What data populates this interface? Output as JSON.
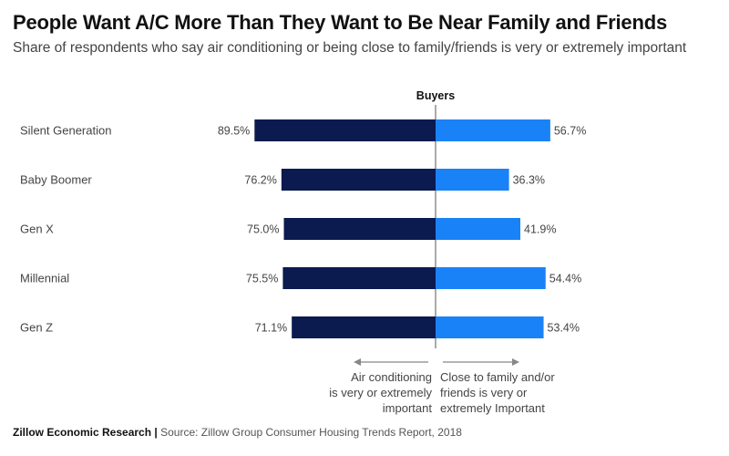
{
  "title": "People Want A/C More Than They Want to Be Near Family and Friends",
  "subtitle": "Share of respondents who say air conditioning or being close to family/friends is very or extremely important",
  "footer": {
    "brand": "Zillow Economic Research |",
    "source": "Source: Zillow Group Consumer Housing Trends Report, 2018"
  },
  "colors": {
    "left_series": "#0b1a4f",
    "right_series": "#1a82f7",
    "axis": "#888888"
  },
  "chart_data": {
    "type": "bar",
    "orientation": "horizontal-diverging",
    "center_label": "Buyers",
    "categories": [
      "Silent Generation",
      "Baby Boomer",
      "Gen X",
      "Millennial",
      "Gen Z"
    ],
    "series": [
      {
        "name": "Air conditioning is very or extremely important",
        "side": "left",
        "values": [
          89.5,
          76.2,
          75.0,
          75.5,
          71.1
        ],
        "labels": [
          "89.5%",
          "76.2%",
          "75.0%",
          "75.5%",
          "71.1%"
        ]
      },
      {
        "name": "Close to family and/or friends is very or extremely Important",
        "side": "right",
        "values": [
          56.7,
          36.3,
          41.9,
          54.4,
          53.4
        ],
        "labels": [
          "56.7%",
          "36.3%",
          "41.9%",
          "54.4%",
          "53.4%"
        ]
      }
    ],
    "left_legend_lines": [
      "Air conditioning",
      "is very or extremely",
      "important"
    ],
    "right_legend_lines": [
      "Close to family and/or",
      "friends is very or",
      "extremely Important"
    ],
    "unit": "%"
  }
}
